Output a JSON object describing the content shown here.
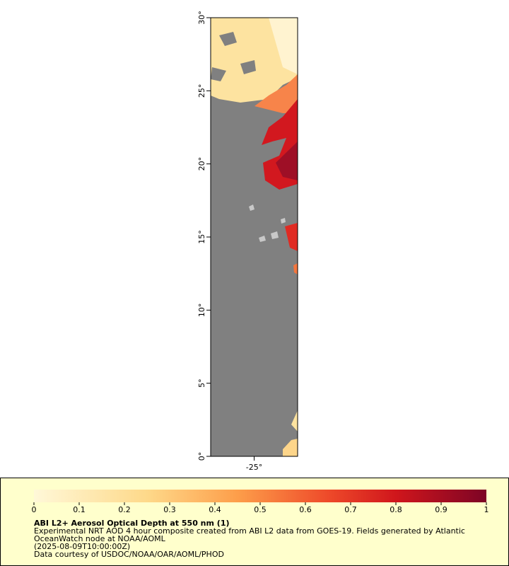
{
  "map": {
    "ylim": [
      0,
      30
    ],
    "yticks": [
      {
        "value": 0,
        "label": "0°"
      },
      {
        "value": 5,
        "label": "5°"
      },
      {
        "value": 10,
        "label": "10°"
      },
      {
        "value": 15,
        "label": "15°"
      },
      {
        "value": 20,
        "label": "20°"
      },
      {
        "value": 25,
        "label": "25°"
      },
      {
        "value": 30,
        "label": "30°"
      }
    ],
    "xlim": [
      -28,
      -22
    ],
    "xticks": [
      {
        "value": -25,
        "label": "-25°"
      }
    ]
  },
  "colorbar": {
    "xlim": [
      0,
      1
    ],
    "xticks": [
      0,
      0.1,
      0.2,
      0.3,
      0.4,
      0.5,
      0.6,
      0.7,
      0.8,
      0.9,
      1
    ]
  },
  "legend": {
    "title": "ABI L2+ Aerosol Optical Depth at 550 nm (1)",
    "lines": [
      "Experimental NRT AOD 4 hour composite created from ABI L2 data from GOES-19. Fields generated by Atlantic",
      "OceanWatch node at NOAA/AOML",
      "(2025-08-09T10:00:00Z)",
      "Data courtesy of USDOC/NOAA/OAR/AOML/PHOD"
    ]
  }
}
